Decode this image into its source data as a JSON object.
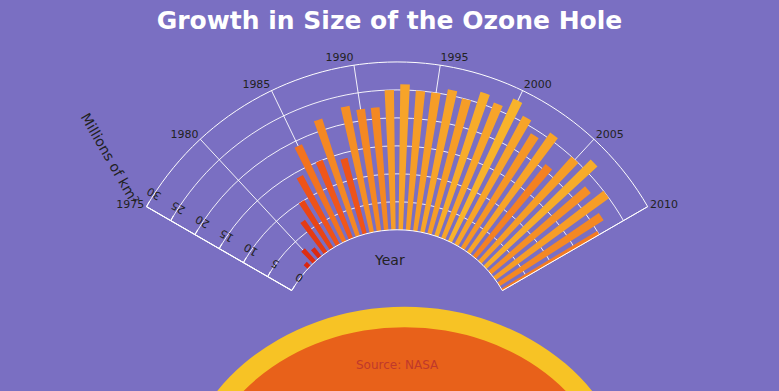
{
  "chart_data": {
    "type": "bar",
    "title": "Growth in Size of the Ozone Hole",
    "x_label": "Year",
    "y_label": "Millions of km²",
    "source": "Source: NASA",
    "x": [
      1979,
      1980,
      1981,
      1982,
      1983,
      1984,
      1985,
      1986,
      1987,
      1988,
      1989,
      1990,
      1991,
      1992,
      1993,
      1994,
      1995,
      1996,
      1997,
      1998,
      1999,
      2000,
      2001,
      2002,
      2003,
      2004,
      2005,
      2006,
      2007,
      2008,
      2009,
      2010
    ],
    "values": [
      1,
      3,
      2,
      7,
      10,
      14,
      19,
      15,
      22,
      14,
      23,
      22,
      22,
      25,
      26,
      25,
      25,
      26,
      25,
      27,
      26,
      28,
      26,
      24,
      26,
      21,
      25,
      27,
      23,
      25,
      22,
      20
    ],
    "xlim": [
      1975,
      2010
    ],
    "xticks": [
      1975,
      1980,
      1985,
      1990,
      1995,
      2000,
      2005,
      2010
    ],
    "ylim": [
      0,
      30
    ],
    "yticks": [
      0,
      5,
      10,
      15,
      20,
      25,
      30
    ],
    "grid": true
  }
}
